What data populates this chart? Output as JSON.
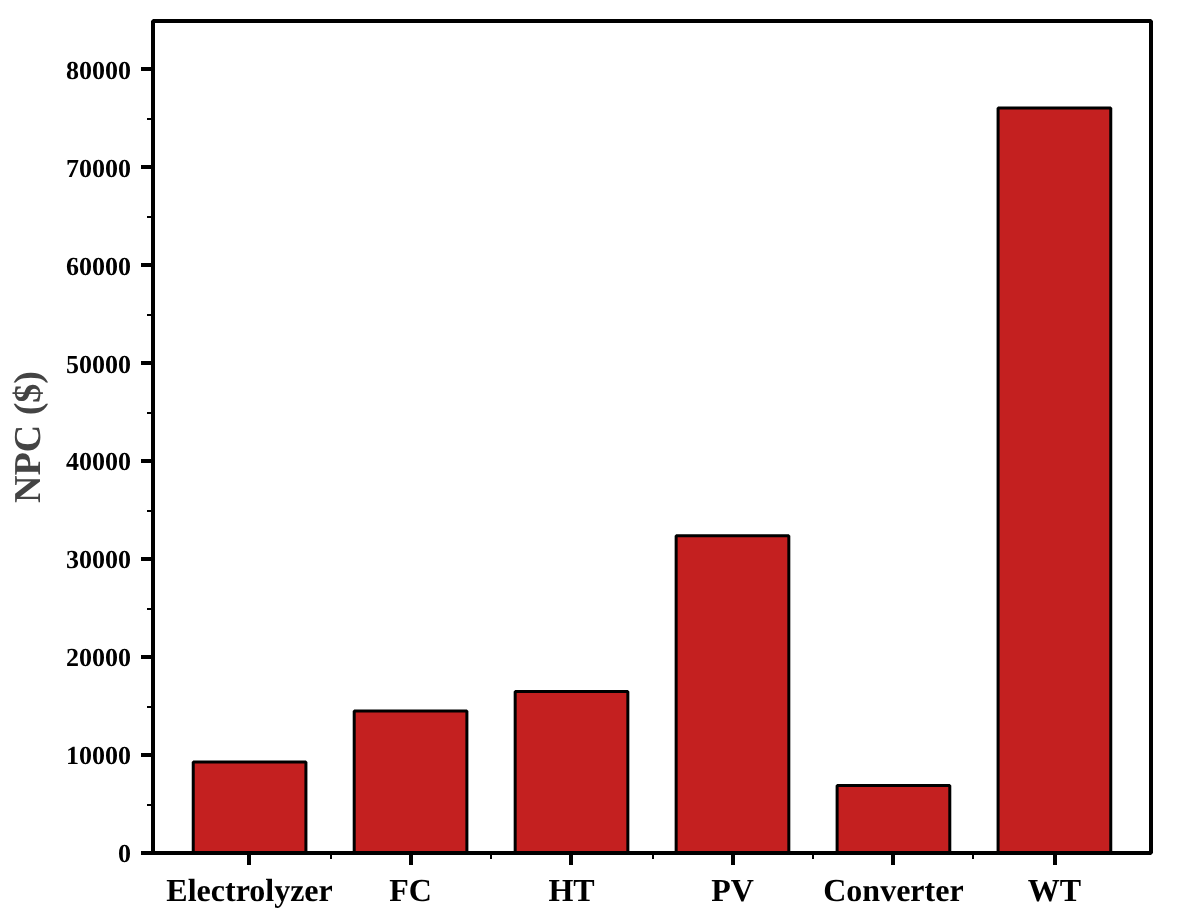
{
  "chart_data": {
    "type": "bar",
    "ylabel": "NPC ($)",
    "categories": [
      "Electrolyzer",
      "FC",
      "HT",
      "PV",
      "Converter",
      "WT"
    ],
    "values": [
      9300,
      14500,
      16500,
      32400,
      6900,
      76100
    ],
    "color": "#c42020",
    "ylim": [
      0,
      85000
    ],
    "yticks": [
      0,
      10000,
      20000,
      30000,
      40000,
      50000,
      60000,
      70000,
      80000
    ],
    "grid": false
  }
}
